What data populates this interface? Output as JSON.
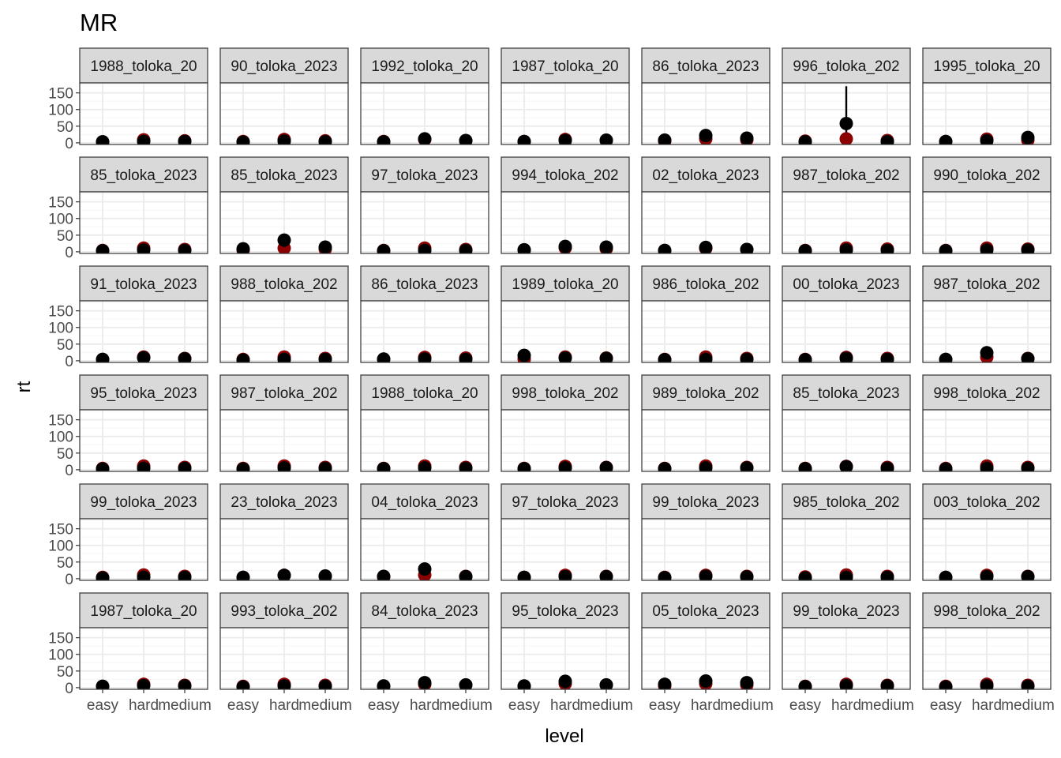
{
  "chart_data": {
    "type": "scatter",
    "title": "MR",
    "xlabel": "level",
    "ylabel": "rt",
    "categories": [
      "easy",
      "hard",
      "medium"
    ],
    "ylim": [
      -5,
      180
    ],
    "yticks": [
      0,
      50,
      100,
      150
    ],
    "grid": true,
    "legend": "none",
    "layout": {
      "rows": 6,
      "cols": 7
    },
    "colors": {
      "point_dark": "#000000",
      "point_red": "#8b0000",
      "strip_fill": "#d9d9d9",
      "grid_major": "#ebebeb",
      "grid_minor": "#f5f5f5",
      "panel_border": "#333333",
      "tick_text": "#4d4d4d"
    },
    "panels": [
      {
        "label": "1988_toloka_20",
        "red": [
          3,
          9,
          6
        ],
        "black": [
          3,
          4,
          4
        ],
        "err": [
          null,
          null,
          null
        ]
      },
      {
        "label": "90_toloka_2023",
        "red": [
          4,
          10,
          6
        ],
        "black": [
          2,
          5,
          3
        ],
        "err": [
          null,
          null,
          null
        ]
      },
      {
        "label": "1992_toloka_20",
        "red": [
          4,
          10,
          6
        ],
        "black": [
          3,
          12,
          7
        ],
        "err": [
          null,
          null,
          null
        ]
      },
      {
        "label": "1987_toloka_20",
        "red": [
          4,
          10,
          7
        ],
        "black": [
          4,
          7,
          8
        ],
        "err": [
          null,
          null,
          null
        ]
      },
      {
        "label": "86_toloka_2023",
        "red": [
          5,
          12,
          9
        ],
        "black": [
          8,
          22,
          14
        ],
        "err": [
          null,
          null,
          null
        ]
      },
      {
        "label": "996_toloka_202",
        "red": [
          5,
          12,
          7
        ],
        "black": [
          3,
          58,
          3
        ],
        "err": [
          null,
          [
            10,
            170
          ],
          null
        ]
      },
      {
        "label": "1995_toloka_20",
        "red": [
          4,
          11,
          8
        ],
        "black": [
          4,
          6,
          16
        ],
        "err": [
          null,
          null,
          null
        ]
      },
      {
        "label": "85_toloka_2023",
        "red": [
          4,
          11,
          7
        ],
        "black": [
          3,
          5,
          4
        ],
        "err": [
          null,
          null,
          null
        ]
      },
      {
        "label": "85_toloka_2023",
        "red": [
          5,
          11,
          8
        ],
        "black": [
          9,
          35,
          14
        ],
        "err": [
          null,
          null,
          null
        ]
      },
      {
        "label": "97_toloka_2023",
        "red": [
          4,
          11,
          7
        ],
        "black": [
          3,
          4,
          4
        ],
        "err": [
          null,
          null,
          null
        ]
      },
      {
        "label": "994_toloka_202",
        "red": [
          5,
          12,
          9
        ],
        "black": [
          6,
          16,
          14
        ],
        "err": [
          null,
          null,
          null
        ]
      },
      {
        "label": "02_toloka_2023",
        "red": [
          4,
          10,
          7
        ],
        "black": [
          4,
          13,
          7
        ],
        "err": [
          null,
          null,
          null
        ]
      },
      {
        "label": "987_toloka_202",
        "red": [
          4,
          11,
          8
        ],
        "black": [
          3,
          5,
          4
        ],
        "err": [
          null,
          null,
          null
        ]
      },
      {
        "label": "990_toloka_202",
        "red": [
          4,
          11,
          8
        ],
        "black": [
          3,
          5,
          5
        ],
        "err": [
          null,
          null,
          null
        ]
      },
      {
        "label": "91_toloka_2023",
        "red": [
          4,
          11,
          7
        ],
        "black": [
          4,
          9,
          6
        ],
        "err": [
          null,
          null,
          null
        ]
      },
      {
        "label": "988_toloka_202",
        "red": [
          4,
          11,
          7
        ],
        "black": [
          2,
          4,
          4
        ],
        "err": [
          null,
          null,
          null
        ]
      },
      {
        "label": "86_toloka_2023",
        "red": [
          4,
          10,
          8
        ],
        "black": [
          5,
          5,
          4
        ],
        "err": [
          null,
          null,
          null
        ]
      },
      {
        "label": "1989_toloka_20",
        "red": [
          5,
          11,
          8
        ],
        "black": [
          16,
          8,
          7
        ],
        "err": [
          null,
          null,
          null
        ]
      },
      {
        "label": "986_toloka_202",
        "red": [
          4,
          11,
          7
        ],
        "black": [
          3,
          4,
          4
        ],
        "err": [
          null,
          null,
          null
        ]
      },
      {
        "label": "00_toloka_2023",
        "red": [
          4,
          10,
          7
        ],
        "black": [
          3,
          7,
          4
        ],
        "err": [
          null,
          null,
          null
        ]
      },
      {
        "label": "987_toloka_202",
        "red": [
          4,
          11,
          7
        ],
        "black": [
          4,
          24,
          6
        ],
        "err": [
          null,
          null,
          null
        ]
      },
      {
        "label": "95_toloka_2023",
        "red": [
          4,
          11,
          7
        ],
        "black": [
          2,
          4,
          4
        ],
        "err": [
          null,
          null,
          null
        ]
      },
      {
        "label": "987_toloka_202",
        "red": [
          4,
          11,
          7
        ],
        "black": [
          2,
          5,
          4
        ],
        "err": [
          null,
          null,
          null
        ]
      },
      {
        "label": "1988_toloka_20",
        "red": [
          4,
          11,
          7
        ],
        "black": [
          3,
          5,
          4
        ],
        "err": [
          null,
          null,
          null
        ]
      },
      {
        "label": "998_toloka_202",
        "red": [
          4,
          10,
          7
        ],
        "black": [
          3,
          5,
          6
        ],
        "err": [
          null,
          null,
          null
        ]
      },
      {
        "label": "989_toloka_202",
        "red": [
          4,
          11,
          7
        ],
        "black": [
          3,
          5,
          5
        ],
        "err": [
          null,
          null,
          null
        ]
      },
      {
        "label": "85_toloka_2023",
        "red": [
          4,
          10,
          7
        ],
        "black": [
          3,
          9,
          4
        ],
        "err": [
          null,
          null,
          null
        ]
      },
      {
        "label": "998_toloka_202",
        "red": [
          4,
          11,
          7
        ],
        "black": [
          2,
          4,
          4
        ],
        "err": [
          null,
          null,
          null
        ]
      },
      {
        "label": "99_toloka_2023",
        "red": [
          4,
          11,
          7
        ],
        "black": [
          2,
          4,
          4
        ],
        "err": [
          null,
          null,
          null
        ]
      },
      {
        "label": "23_toloka_2023",
        "red": [
          4,
          10,
          7
        ],
        "black": [
          4,
          10,
          8
        ],
        "err": [
          null,
          null,
          null
        ]
      },
      {
        "label": "04_toloka_2023",
        "red": [
          5,
          11,
          7
        ],
        "black": [
          7,
          29,
          6
        ],
        "err": [
          null,
          [
            12,
            48
          ],
          null
        ]
      },
      {
        "label": "97_toloka_2023",
        "red": [
          4,
          10,
          7
        ],
        "black": [
          4,
          6,
          6
        ],
        "err": [
          null,
          null,
          null
        ]
      },
      {
        "label": "99_toloka_2023",
        "red": [
          4,
          10,
          7
        ],
        "black": [
          3,
          7,
          5
        ],
        "err": [
          null,
          null,
          null
        ]
      },
      {
        "label": "985_toloka_202",
        "red": [
          5,
          11,
          7
        ],
        "black": [
          2,
          4,
          4
        ],
        "err": [
          null,
          null,
          null
        ]
      },
      {
        "label": "003_toloka_202",
        "red": [
          4,
          10,
          7
        ],
        "black": [
          4,
          6,
          6
        ],
        "err": [
          null,
          null,
          null
        ]
      },
      {
        "label": "1987_toloka_20",
        "red": [
          4,
          10,
          7
        ],
        "black": [
          4,
          6,
          5
        ],
        "err": [
          null,
          null,
          null
        ]
      },
      {
        "label": "993_toloka_202",
        "red": [
          4,
          10,
          7
        ],
        "black": [
          2,
          5,
          4
        ],
        "err": [
          null,
          null,
          null
        ]
      },
      {
        "label": "84_toloka_2023",
        "red": [
          4,
          10,
          8
        ],
        "black": [
          5,
          15,
          8
        ],
        "err": [
          null,
          null,
          null
        ]
      },
      {
        "label": "95_toloka_2023",
        "red": [
          4,
          12,
          8
        ],
        "black": [
          5,
          19,
          8
        ],
        "err": [
          null,
          null,
          null
        ]
      },
      {
        "label": "05_toloka_2023",
        "red": [
          5,
          12,
          8
        ],
        "black": [
          10,
          20,
          15
        ],
        "err": [
          null,
          null,
          null
        ]
      },
      {
        "label": "99_toloka_2023",
        "red": [
          4,
          10,
          7
        ],
        "black": [
          3,
          6,
          5
        ],
        "err": [
          null,
          null,
          null
        ]
      },
      {
        "label": "998_toloka_202",
        "red": [
          4,
          10,
          7
        ],
        "black": [
          2,
          5,
          4
        ],
        "err": [
          null,
          null,
          null
        ]
      }
    ]
  }
}
